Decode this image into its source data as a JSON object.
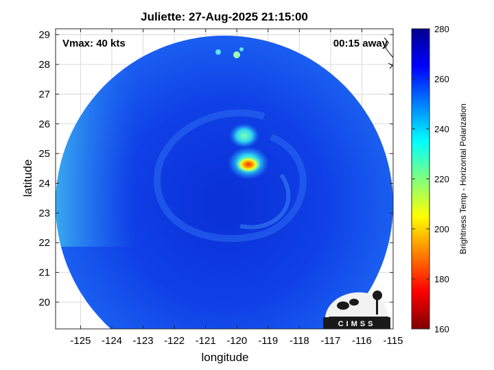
{
  "title": "Juliette: 27-Aug-2025 21:15:00",
  "annotations": {
    "vmax": "Vmax: 40 kts",
    "away": "00:15 away"
  },
  "xlabel": "longitude",
  "ylabel": "latitude",
  "colorbar": {
    "label": "Brightness Temp - Horizontal Polarization",
    "ticks": [
      "280",
      "260",
      "240",
      "220",
      "200",
      "180",
      "160"
    ],
    "range": [
      160,
      280
    ],
    "colormap": [
      "#7f0000",
      "#ff0000",
      "#ff7f00",
      "#ffff00",
      "#7fff7f",
      "#00ffff",
      "#007fff",
      "#0000ff",
      "#00008f"
    ]
  },
  "axes": {
    "xticks": [
      "-125",
      "-124",
      "-123",
      "-122",
      "-121",
      "-120",
      "-119",
      "-118",
      "-117",
      "-116",
      "-115"
    ],
    "yticks": [
      "29",
      "28",
      "27",
      "26",
      "25",
      "24",
      "23",
      "22",
      "21",
      "20"
    ],
    "xlim": [
      -125.8,
      -115
    ],
    "ylim": [
      19.1,
      29.2
    ],
    "grid": true
  },
  "storm_center": {
    "lon": -119.6,
    "lat": 24.5
  },
  "logo_text": "CIMSS"
}
